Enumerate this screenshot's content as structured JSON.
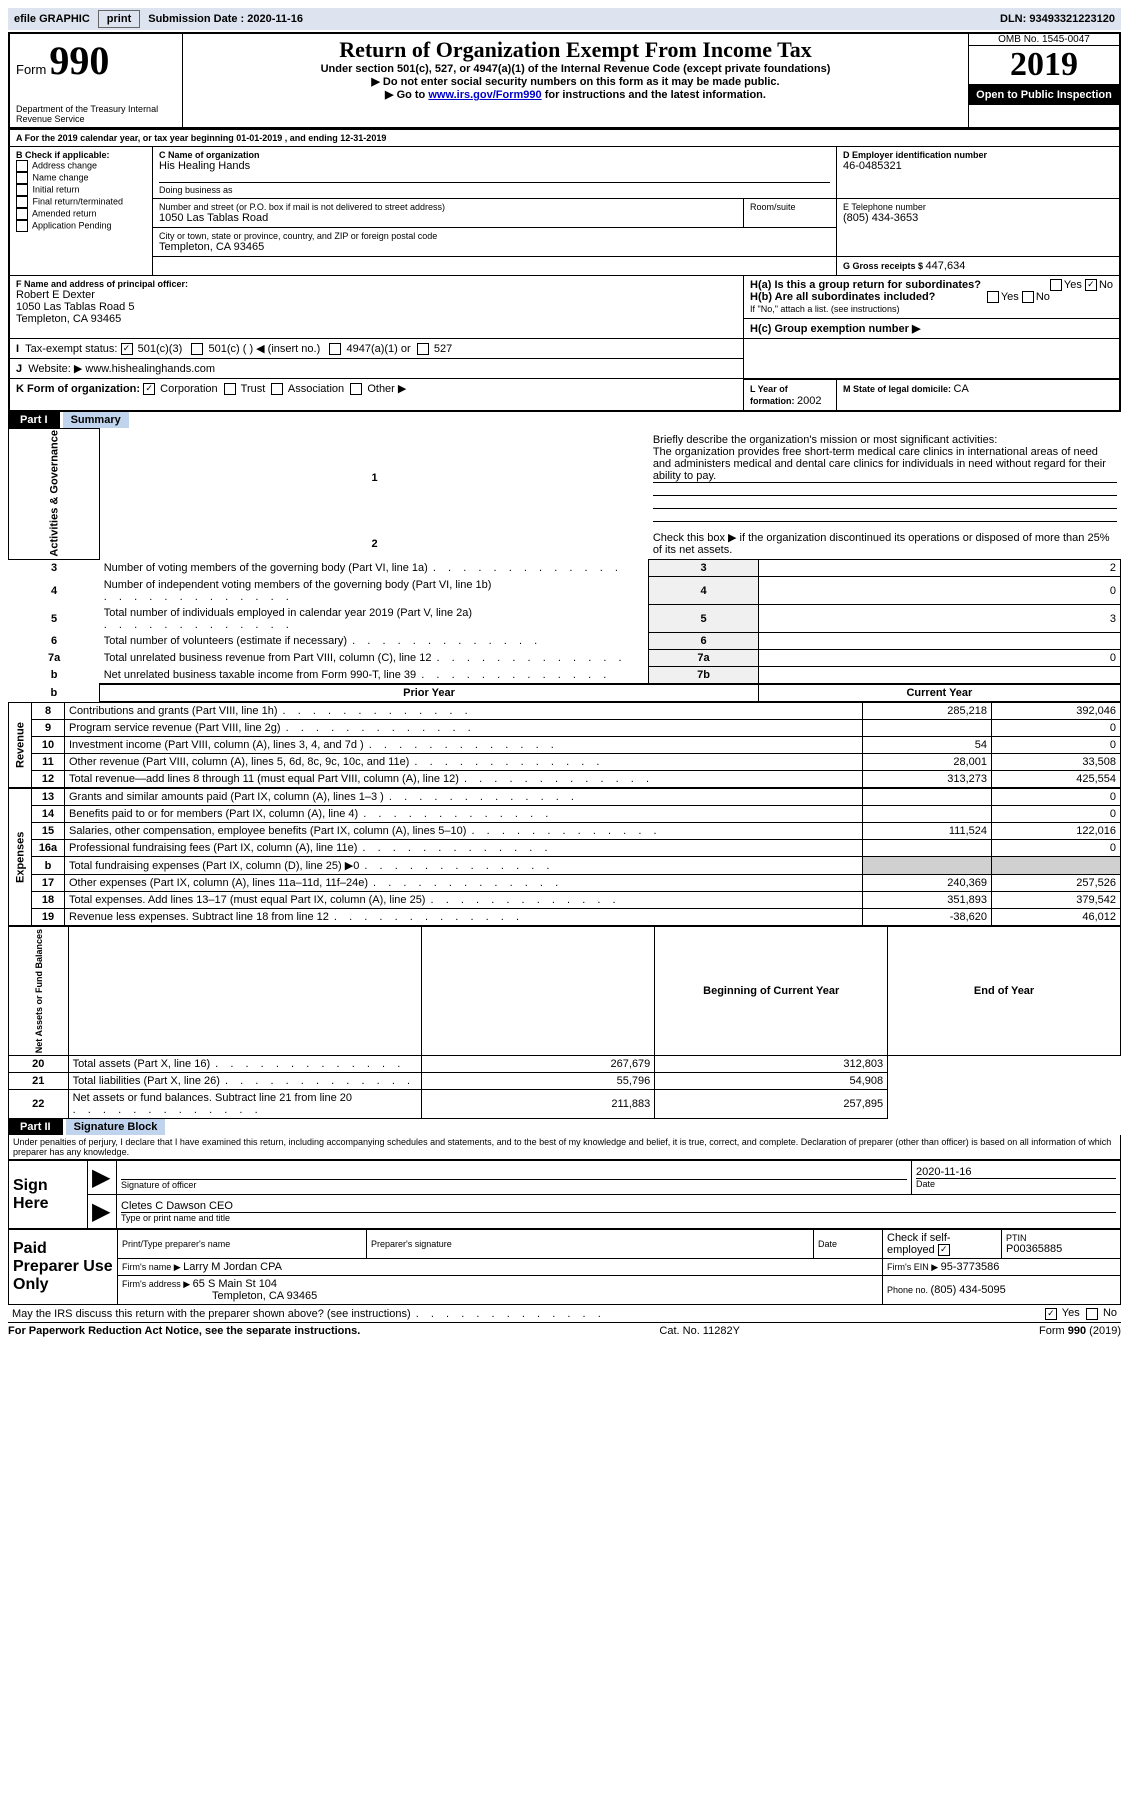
{
  "top": {
    "efile": "efile GRAPHIC",
    "print": "print",
    "sub_date_label": "Submission Date : ",
    "sub_date": "2020-11-16",
    "dln": "DLN: 93493321223120"
  },
  "header": {
    "form_word": "Form",
    "form_num": "990",
    "dept": "Department of the Treasury\nInternal Revenue Service",
    "title": "Return of Organization Exempt From Income Tax",
    "sub1": "Under section 501(c), 527, or 4947(a)(1) of the Internal Revenue Code (except private foundations)",
    "sub2": "▶ Do not enter social security numbers on this form as it may be made public.",
    "sub3_pre": "▶ Go to ",
    "sub3_link": "www.irs.gov/Form990",
    "sub3_post": " for instructions and the latest information.",
    "omb": "OMB No. 1545-0047",
    "year": "2019",
    "inspection": "Open to Public Inspection"
  },
  "lineA": "For the 2019 calendar year, or tax year beginning 01-01-2019   , and ending 12-31-2019",
  "sectionB": {
    "label": "B Check if applicable:",
    "opts": [
      "Address change",
      "Name change",
      "Initial return",
      "Final return/terminated",
      "Amended return",
      "Application Pending"
    ]
  },
  "sectionC": {
    "name_label": "C Name of organization",
    "name": "His Healing Hands",
    "dba_label": "Doing business as",
    "addr_label": "Number and street (or P.O. box if mail is not delivered to street address)",
    "room_label": "Room/suite",
    "addr": "1050 Las Tablas Road",
    "city_label": "City or town, state or province, country, and ZIP or foreign postal code",
    "city": "Templeton, CA  93465"
  },
  "sectionD": {
    "label": "D Employer identification number",
    "val": "46-0485321"
  },
  "sectionE": {
    "label": "E Telephone number",
    "val": "(805) 434-3653"
  },
  "sectionG": {
    "label": "G Gross receipts $ ",
    "val": "447,634"
  },
  "sectionF": {
    "label": "F  Name and address of principal officer:",
    "name": "Robert E Dexter",
    "addr1": "1050 Las Tablas Road 5",
    "addr2": "Templeton, CA  93465"
  },
  "sectionH": {
    "a": "H(a)  Is this a group return for subordinates?",
    "b": "H(b)  Are all subordinates included?",
    "b_note": "If \"No,\" attach a list. (see instructions)",
    "c": "H(c)  Group exemption number ▶",
    "yes": "Yes",
    "no": "No"
  },
  "sectionI": {
    "label": "Tax-exempt status:",
    "o1": "501(c)(3)",
    "o2": "501(c) (  ) ◀ (insert no.)",
    "o3": "4947(a)(1) or",
    "o4": "527"
  },
  "sectionJ": {
    "label": "Website: ▶",
    "val": "www.hishealinghands.com"
  },
  "sectionK": {
    "label": "K Form of organization:",
    "o1": "Corporation",
    "o2": "Trust",
    "o3": "Association",
    "o4": "Other ▶"
  },
  "sectionL": {
    "label": "L Year of formation: ",
    "val": "2002"
  },
  "sectionM": {
    "label": "M State of legal domicile: ",
    "val": "CA"
  },
  "part1": {
    "label": "Part I",
    "title": "Summary",
    "l1_label": "Briefly describe the organization's mission or most significant activities:",
    "l1_text": "The organization provides free short-term medical care clinics in international areas of need and administers medical and dental care clinics for individuals in need without regard for their ability to pay.",
    "l2": "Check this box ▶  if the organization discontinued its operations or disposed of more than 25% of its net assets.",
    "rows_gov": [
      {
        "n": "3",
        "t": "Number of voting members of the governing body (Part VI, line 1a)",
        "b": "3",
        "v": "2"
      },
      {
        "n": "4",
        "t": "Number of independent voting members of the governing body (Part VI, line 1b)",
        "b": "4",
        "v": "0"
      },
      {
        "n": "5",
        "t": "Total number of individuals employed in calendar year 2019 (Part V, line 2a)",
        "b": "5",
        "v": "3"
      },
      {
        "n": "6",
        "t": "Total number of volunteers (estimate if necessary)",
        "b": "6",
        "v": ""
      },
      {
        "n": "7a",
        "t": "Total unrelated business revenue from Part VIII, column (C), line 12",
        "b": "7a",
        "v": "0"
      },
      {
        "n": "b",
        "t": "Net unrelated business taxable income from Form 990-T, line 39",
        "b": "7b",
        "v": ""
      }
    ],
    "py": "Prior Year",
    "cy": "Current Year",
    "rows_rev": [
      {
        "n": "8",
        "t": "Contributions and grants (Part VIII, line 1h)",
        "p": "285,218",
        "c": "392,046"
      },
      {
        "n": "9",
        "t": "Program service revenue (Part VIII, line 2g)",
        "p": "",
        "c": "0"
      },
      {
        "n": "10",
        "t": "Investment income (Part VIII, column (A), lines 3, 4, and 7d )",
        "p": "54",
        "c": "0"
      },
      {
        "n": "11",
        "t": "Other revenue (Part VIII, column (A), lines 5, 6d, 8c, 9c, 10c, and 11e)",
        "p": "28,001",
        "c": "33,508"
      },
      {
        "n": "12",
        "t": "Total revenue—add lines 8 through 11 (must equal Part VIII, column (A), line 12)",
        "p": "313,273",
        "c": "425,554"
      }
    ],
    "rows_exp": [
      {
        "n": "13",
        "t": "Grants and similar amounts paid (Part IX, column (A), lines 1–3 )",
        "p": "",
        "c": "0"
      },
      {
        "n": "14",
        "t": "Benefits paid to or for members (Part IX, column (A), line 4)",
        "p": "",
        "c": "0"
      },
      {
        "n": "15",
        "t": "Salaries, other compensation, employee benefits (Part IX, column (A), lines 5–10)",
        "p": "111,524",
        "c": "122,016"
      },
      {
        "n": "16a",
        "t": "Professional fundraising fees (Part IX, column (A), line 11e)",
        "p": "",
        "c": "0"
      },
      {
        "n": "b",
        "t": "Total fundraising expenses (Part IX, column (D), line 25) ▶0",
        "p": "shaded",
        "c": "shaded"
      },
      {
        "n": "17",
        "t": "Other expenses (Part IX, column (A), lines 11a–11d, 11f–24e)",
        "p": "240,369",
        "c": "257,526"
      },
      {
        "n": "18",
        "t": "Total expenses. Add lines 13–17 (must equal Part IX, column (A), line 25)",
        "p": "351,893",
        "c": "379,542"
      },
      {
        "n": "19",
        "t": "Revenue less expenses. Subtract line 18 from line 12",
        "p": "-38,620",
        "c": "46,012"
      }
    ],
    "by": "Beginning of Current Year",
    "ey": "End of Year",
    "rows_net": [
      {
        "n": "20",
        "t": "Total assets (Part X, line 16)",
        "p": "267,679",
        "c": "312,803"
      },
      {
        "n": "21",
        "t": "Total liabilities (Part X, line 26)",
        "p": "55,796",
        "c": "54,908"
      },
      {
        "n": "22",
        "t": "Net assets or fund balances. Subtract line 21 from line 20",
        "p": "211,883",
        "c": "257,895"
      }
    ],
    "side_gov": "Activities & Governance",
    "side_rev": "Revenue",
    "side_exp": "Expenses",
    "side_net": "Net Assets or Fund Balances"
  },
  "part2": {
    "label": "Part II",
    "title": "Signature Block",
    "decl": "Under penalties of perjury, I declare that I have examined this return, including accompanying schedules and statements, and to the best of my knowledge and belief, it is true, correct, and complete. Declaration of preparer (other than officer) is based on all information of which preparer has any knowledge.",
    "sign_here": "Sign Here",
    "sig_officer": "Signature of officer",
    "date": "Date",
    "date_val": "2020-11-16",
    "officer_name": "Cletes C Dawson CEO",
    "type_print": "Type or print name and title",
    "paid": "Paid Preparer Use Only",
    "prep_name_label": "Print/Type preparer's name",
    "prep_sig_label": "Preparer's signature",
    "date_label": "Date",
    "check_self": "Check       if self-employed",
    "ptin_label": "PTIN",
    "ptin": "P00365885",
    "firm_name_label": "Firm's name    ▶ ",
    "firm_name": "Larry M Jordan CPA",
    "firm_ein_label": "Firm's EIN ▶ ",
    "firm_ein": "95-3773586",
    "firm_addr_label": "Firm's address ▶ ",
    "firm_addr": "65 S Main St 104",
    "firm_city": "Templeton, CA  93465",
    "phone_label": "Phone no. ",
    "phone": "(805) 434-5095",
    "discuss": "May the IRS discuss this return with the preparer shown above? (see instructions)"
  },
  "footer": {
    "left": "For Paperwork Reduction Act Notice, see the separate instructions.",
    "mid": "Cat. No. 11282Y",
    "right": "Form 990 (2019)"
  }
}
